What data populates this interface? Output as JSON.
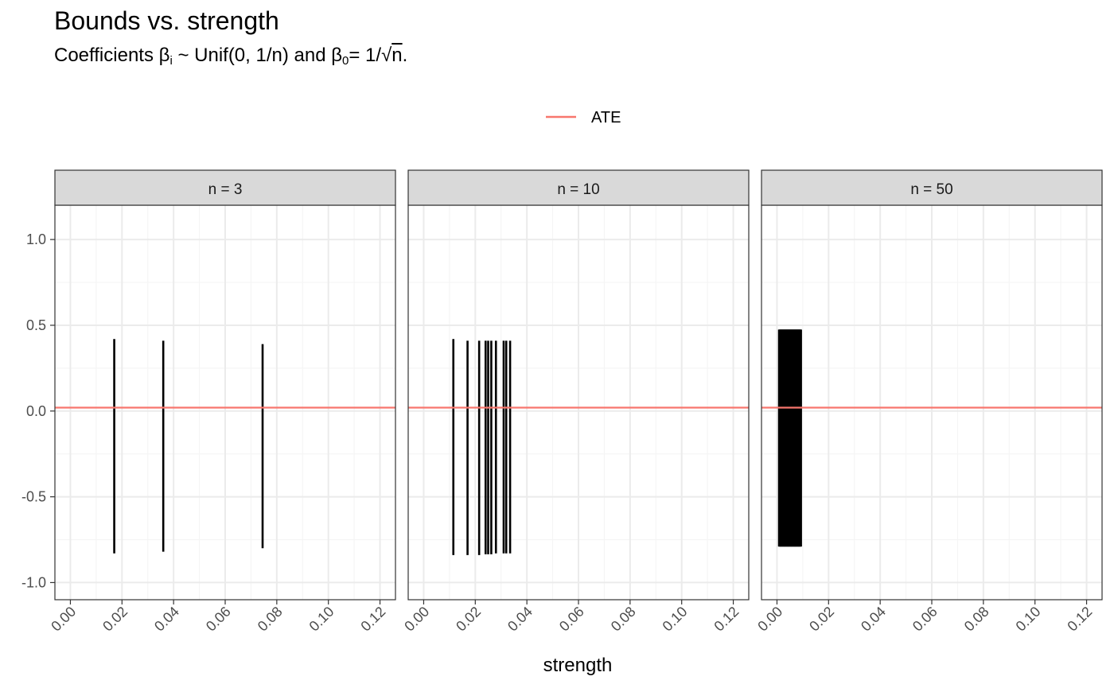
{
  "chart_data": {
    "type": "line",
    "title": "Bounds vs. strength",
    "subtitle": {
      "prefix": "Coefficients β",
      "sub_i": "i",
      "middle": " ~ Unif(0, 1/n) and β",
      "sub_0": "0",
      "suffix_pre": "= 1/√",
      "sqrt_arg": "n",
      "suffix_end": "."
    },
    "xlabel": "strength",
    "ylabel": "",
    "xlim": [
      -0.006,
      0.126
    ],
    "ylim": [
      -1.1,
      1.2
    ],
    "x_ticks": [
      0.0,
      0.02,
      0.04,
      0.06,
      0.08,
      0.1,
      0.12
    ],
    "x_tick_labels": [
      "0.00",
      "0.02",
      "0.04",
      "0.06",
      "0.08",
      "0.10",
      "0.12"
    ],
    "y_ticks": [
      1.0,
      0.5,
      0.0,
      -0.5,
      -1.0
    ],
    "y_tick_labels": [
      "1.0",
      "0.5",
      "0.0",
      "-0.5",
      "-1.0"
    ],
    "legend": {
      "position": "top",
      "entries": [
        {
          "label": "ATE",
          "color": "#F8766D"
        }
      ]
    },
    "ate_value": 0.02,
    "panels": [
      {
        "label": "n = 3",
        "intervals": [
          {
            "x": 0.017,
            "lower": -0.83,
            "upper": 0.42
          },
          {
            "x": 0.036,
            "lower": -0.82,
            "upper": 0.41
          },
          {
            "x": 0.0745,
            "lower": -0.8,
            "upper": 0.39
          }
        ]
      },
      {
        "label": "n = 10",
        "intervals": [
          {
            "x": 0.0115,
            "lower": -0.84,
            "upper": 0.42
          },
          {
            "x": 0.017,
            "lower": -0.84,
            "upper": 0.41
          },
          {
            "x": 0.0215,
            "lower": -0.84,
            "upper": 0.41
          },
          {
            "x": 0.024,
            "lower": -0.835,
            "upper": 0.41
          },
          {
            "x": 0.025,
            "lower": -0.835,
            "upper": 0.41
          },
          {
            "x": 0.0262,
            "lower": -0.835,
            "upper": 0.41
          },
          {
            "x": 0.028,
            "lower": -0.83,
            "upper": 0.41
          },
          {
            "x": 0.031,
            "lower": -0.83,
            "upper": 0.41
          },
          {
            "x": 0.032,
            "lower": -0.83,
            "upper": 0.41
          },
          {
            "x": 0.0335,
            "lower": -0.83,
            "upper": 0.41
          }
        ]
      },
      {
        "label": "n = 50",
        "band": {
          "x_min": 0.0008,
          "x_max": 0.0093,
          "lower": -0.79,
          "upper": 0.475,
          "count": 50
        }
      }
    ],
    "colors": {
      "interval": "#000000",
      "ate": "#F8766D",
      "strip_fill": "#D9D9D9",
      "grid_major": "#EBEBEB",
      "grid_minor": "#F5F5F5",
      "border": "#333333"
    }
  }
}
